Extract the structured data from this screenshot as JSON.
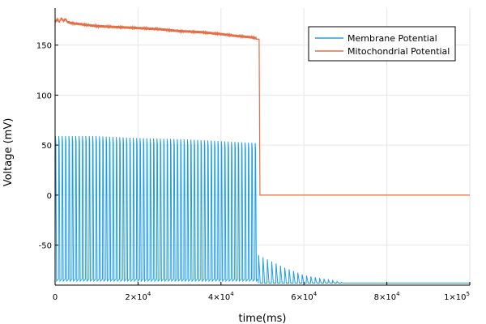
{
  "chart_data": {
    "type": "line",
    "title": "",
    "xlabel": "time(ms)",
    "ylabel": "Voltage (mV)",
    "xlim": [
      0,
      100000
    ],
    "ylim": [
      -90,
      187
    ],
    "grid": true,
    "legend_position": "top-right",
    "x_ticks": [
      {
        "value": 0,
        "label": "0",
        "exp": ""
      },
      {
        "value": 20000,
        "label": "2×10",
        "exp": "4"
      },
      {
        "value": 40000,
        "label": "4×10",
        "exp": "4"
      },
      {
        "value": 60000,
        "label": "6×10",
        "exp": "4"
      },
      {
        "value": 80000,
        "label": "8×10",
        "exp": "4"
      },
      {
        "value": 100000,
        "label": "1×10",
        "exp": "5"
      }
    ],
    "y_ticks": [
      {
        "value": -50,
        "label": "-50"
      },
      {
        "value": 0,
        "label": "0"
      },
      {
        "value": 50,
        "label": "50"
      },
      {
        "value": 100,
        "label": "100"
      },
      {
        "value": 150,
        "label": "150"
      }
    ],
    "series": [
      {
        "name": "Membrane Potential",
        "color": "#1f9fe0",
        "spike_train": {
          "start": 0,
          "end": 49000,
          "spike_count": 60,
          "peak": [
            [
              0,
              59
            ],
            [
              10000,
              59
            ],
            [
              20000,
              57
            ],
            [
              30000,
              56
            ],
            [
              40000,
              54
            ],
            [
              48500,
              52
            ]
          ],
          "trough": -86
        },
        "decay_spikes": {
          "start": 49000,
          "end": 70000,
          "interval": 1050,
          "peak": [
            [
              49000,
              -60
            ],
            [
              55000,
              -72
            ],
            [
              60000,
              -80
            ],
            [
              70000,
              -88
            ]
          ],
          "trough": -88
        },
        "baseline": [
          [
            70000,
            -88
          ],
          [
            100000,
            -88
          ]
        ]
      },
      {
        "name": "Mitochondrial Potential",
        "color": "#e26f46",
        "points": [
          [
            0,
            173
          ],
          [
            500,
            176
          ],
          [
            1000,
            173
          ],
          [
            1500,
            177
          ],
          [
            2000,
            174
          ],
          [
            2500,
            176
          ],
          [
            3000,
            173
          ],
          [
            4000,
            172
          ],
          [
            6000,
            171
          ],
          [
            8000,
            170
          ],
          [
            10000,
            169
          ],
          [
            15000,
            168
          ],
          [
            20000,
            167
          ],
          [
            25000,
            166
          ],
          [
            30000,
            164
          ],
          [
            35000,
            163
          ],
          [
            40000,
            161
          ],
          [
            44000,
            159
          ],
          [
            47000,
            158
          ],
          [
            48500,
            157
          ],
          [
            49200,
            156
          ],
          [
            49400,
            0
          ],
          [
            60000,
            0
          ],
          [
            80000,
            0
          ],
          [
            100000,
            0
          ]
        ],
        "oscillation_amplitude": 1.2,
        "oscillation_end": 48500
      }
    ]
  }
}
